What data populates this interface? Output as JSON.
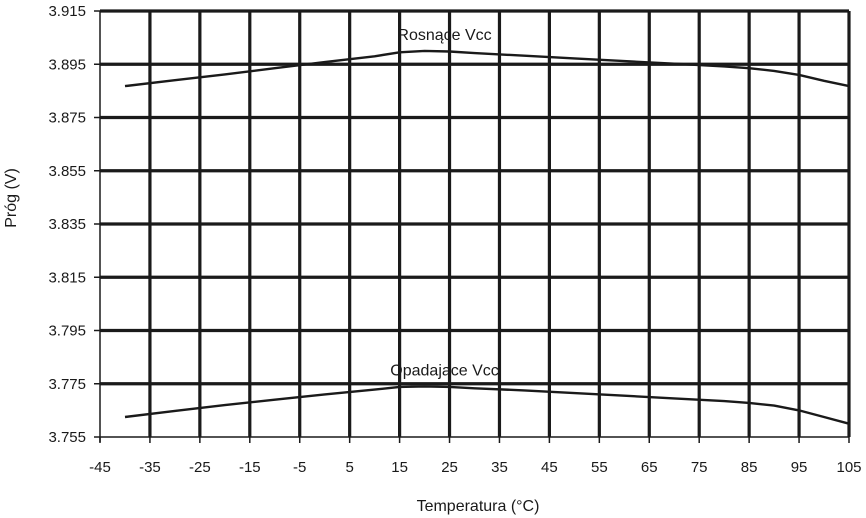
{
  "chart_data": {
    "type": "line",
    "xlabel": "Temperatura (°C)",
    "ylabel": "Próg (V)",
    "xlim": [
      -45,
      105
    ],
    "ylim": [
      3.755,
      3.915
    ],
    "x_ticks": [
      "-45",
      "-35",
      "-25",
      "-15",
      "-5",
      "5",
      "15",
      "25",
      "35",
      "45",
      "55",
      "65",
      "75",
      "85",
      "95",
      "105"
    ],
    "x_tick_values": [
      -45,
      -35,
      -25,
      -15,
      -5,
      5,
      15,
      25,
      35,
      45,
      55,
      65,
      75,
      85,
      95,
      105
    ],
    "y_ticks": [
      "3.915",
      "3.895",
      "3.875",
      "3.855",
      "3.835",
      "3.815",
      "3.795",
      "3.775",
      "3.755"
    ],
    "y_tick_values": [
      3.915,
      3.895,
      3.875,
      3.855,
      3.835,
      3.815,
      3.795,
      3.775,
      3.755
    ],
    "grid": true,
    "series": [
      {
        "name": "Rosnące Vcc",
        "x": [
          -40,
          -30,
          -20,
          -10,
          0,
          10,
          15,
          20,
          25,
          30,
          40,
          50,
          60,
          70,
          80,
          85,
          90,
          95,
          100,
          105
        ],
        "y": [
          3.8868,
          3.889,
          3.8912,
          3.8935,
          3.8958,
          3.898,
          3.8995,
          3.9,
          3.8998,
          3.8992,
          3.8982,
          3.8972,
          3.8962,
          3.8952,
          3.8942,
          3.8935,
          3.8925,
          3.891,
          3.8888,
          3.8868
        ]
      },
      {
        "name": "Opadające Vcc",
        "x": [
          -40,
          -30,
          -20,
          -10,
          0,
          10,
          15,
          20,
          25,
          30,
          40,
          50,
          60,
          70,
          80,
          85,
          90,
          95,
          100,
          105
        ],
        "y": [
          3.7625,
          3.7648,
          3.767,
          3.769,
          3.771,
          3.7728,
          3.7738,
          3.774,
          3.7738,
          3.7733,
          3.7725,
          3.7715,
          3.7705,
          3.7695,
          3.7685,
          3.7678,
          3.7668,
          3.765,
          3.7625,
          3.76
        ]
      }
    ]
  }
}
